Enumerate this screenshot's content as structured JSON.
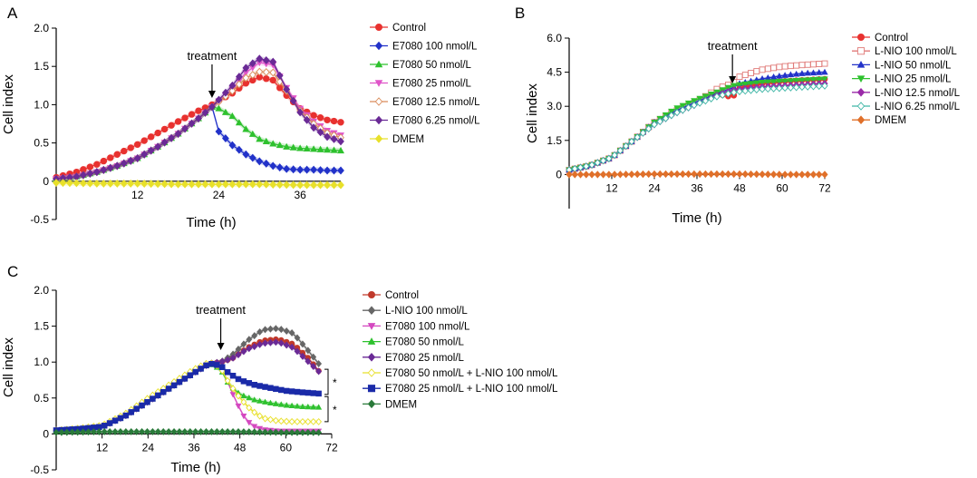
{
  "chart_data": [
    {
      "panel": "A",
      "type": "line",
      "xlabel": "Time (h)",
      "ylabel": "Cell index",
      "xlim": [
        0,
        42
      ],
      "ylim": [
        -0.5,
        2.0
      ],
      "xticks": [
        12,
        24,
        36
      ],
      "yticks": [
        -0.5,
        0,
        0.5,
        1.0,
        1.5,
        2.0
      ],
      "xtick_labels": [
        "12",
        "24",
        "36"
      ],
      "ytick_labels": [
        "-0.5",
        "0",
        "0.5",
        "1.0",
        "1.5",
        "2.0"
      ],
      "annotation": {
        "text": "treatment",
        "x": 23
      },
      "legend_position": "right",
      "series": [
        {
          "name": "Control",
          "color": "#e8312f",
          "marker": "circle",
          "x": [
            0,
            3,
            6,
            9,
            12,
            15,
            18,
            21,
            23,
            26,
            28,
            30,
            32,
            34,
            36,
            38,
            40,
            42
          ],
          "y": [
            0.05,
            0.12,
            0.22,
            0.35,
            0.48,
            0.63,
            0.78,
            0.92,
            1.0,
            1.15,
            1.28,
            1.36,
            1.32,
            1.12,
            0.95,
            0.86,
            0.8,
            0.77
          ]
        },
        {
          "name": "E7080 100 nmol/L",
          "color": "#2232c9",
          "marker": "diamond",
          "x": [
            0,
            3,
            6,
            9,
            12,
            15,
            18,
            21,
            23,
            24,
            26,
            28,
            30,
            32,
            34,
            36,
            38,
            40,
            42
          ],
          "y": [
            0.03,
            0.06,
            0.12,
            0.2,
            0.3,
            0.45,
            0.62,
            0.82,
            0.97,
            0.65,
            0.47,
            0.35,
            0.26,
            0.2,
            0.16,
            0.15,
            0.15,
            0.14,
            0.14
          ]
        },
        {
          "name": "E7080 50 nmol/L",
          "color": "#2ec12e",
          "marker": "triangle",
          "x": [
            0,
            3,
            6,
            9,
            12,
            15,
            18,
            21,
            23,
            24,
            26,
            28,
            30,
            32,
            34,
            36,
            38,
            40,
            42
          ],
          "y": [
            0.03,
            0.06,
            0.12,
            0.2,
            0.3,
            0.45,
            0.62,
            0.82,
            0.97,
            0.95,
            0.85,
            0.68,
            0.55,
            0.49,
            0.45,
            0.43,
            0.42,
            0.41,
            0.4
          ]
        },
        {
          "name": "E7080 25 nmol/L",
          "color": "#e055c9",
          "marker": "triangle-down",
          "x": [
            0,
            3,
            6,
            9,
            12,
            15,
            18,
            21,
            23,
            26,
            28,
            30,
            32,
            34,
            36,
            38,
            40,
            42
          ],
          "y": [
            0.03,
            0.06,
            0.12,
            0.2,
            0.3,
            0.45,
            0.62,
            0.82,
            0.97,
            1.2,
            1.42,
            1.55,
            1.52,
            1.22,
            0.95,
            0.78,
            0.66,
            0.6
          ]
        },
        {
          "name": "E7080 12.5 nmol/L",
          "color": "#d98b5a",
          "marker": "diamond-open",
          "x": [
            0,
            3,
            6,
            9,
            12,
            15,
            18,
            21,
            23,
            26,
            28,
            30,
            32,
            34,
            36,
            38,
            40,
            42
          ],
          "y": [
            0.03,
            0.06,
            0.12,
            0.2,
            0.3,
            0.45,
            0.62,
            0.82,
            0.97,
            1.18,
            1.35,
            1.43,
            1.42,
            1.18,
            0.92,
            0.75,
            0.63,
            0.57
          ]
        },
        {
          "name": "E7080 6.25 nmol/L",
          "color": "#6a2a96",
          "marker": "diamond",
          "x": [
            0,
            3,
            6,
            9,
            12,
            15,
            18,
            21,
            23,
            26,
            28,
            30,
            32,
            34,
            36,
            38,
            40,
            42
          ],
          "y": [
            0.03,
            0.06,
            0.12,
            0.2,
            0.3,
            0.45,
            0.62,
            0.82,
            0.97,
            1.25,
            1.48,
            1.6,
            1.56,
            1.2,
            0.9,
            0.7,
            0.58,
            0.52
          ]
        },
        {
          "name": "DMEM",
          "color": "#e8e02a",
          "marker": "diamond",
          "x": [
            0,
            6,
            12,
            18,
            24,
            30,
            36,
            42
          ],
          "y": [
            -0.02,
            -0.03,
            -0.03,
            -0.04,
            -0.04,
            -0.04,
            -0.05,
            -0.05
          ]
        }
      ]
    },
    {
      "panel": "B",
      "type": "line",
      "xlabel": "Time (h)",
      "ylabel": "Cell index",
      "xlim": [
        0,
        72
      ],
      "ylim": [
        -1.5,
        6.0
      ],
      "xticks": [
        12,
        24,
        36,
        48,
        60,
        72
      ],
      "yticks": [
        0,
        1.5,
        3.0,
        4.5,
        6.0
      ],
      "xtick_labels": [
        "12",
        "24",
        "36",
        "48",
        "60",
        "72"
      ],
      "ytick_labels": [
        "0",
        "1.5",
        "3.0",
        "4.5",
        "6.0"
      ],
      "annotation": {
        "text": "treatment",
        "x": 46
      },
      "legend_position": "right",
      "series": [
        {
          "name": "Control",
          "color": "#e8312f",
          "marker": "circle",
          "x": [
            0,
            6,
            12,
            18,
            24,
            30,
            36,
            42,
            46,
            48,
            54,
            60,
            66,
            72
          ],
          "y": [
            0.2,
            0.4,
            0.75,
            1.5,
            2.3,
            2.8,
            3.2,
            3.55,
            3.4,
            3.8,
            4.0,
            4.1,
            4.15,
            4.2
          ]
        },
        {
          "name": "L-NIO 100 nmol/L",
          "color": "#e07a78",
          "marker": "square-open",
          "x": [
            0,
            6,
            12,
            18,
            24,
            30,
            36,
            42,
            46,
            48,
            54,
            60,
            66,
            72
          ],
          "y": [
            0.2,
            0.4,
            0.75,
            1.5,
            2.3,
            2.8,
            3.2,
            3.8,
            4.0,
            4.3,
            4.6,
            4.75,
            4.82,
            4.88
          ]
        },
        {
          "name": "L-NIO 50 nmol/L",
          "color": "#2232c9",
          "marker": "triangle",
          "x": [
            0,
            6,
            12,
            18,
            24,
            30,
            36,
            42,
            46,
            48,
            54,
            60,
            66,
            72
          ],
          "y": [
            0.2,
            0.4,
            0.75,
            1.5,
            2.3,
            2.8,
            3.2,
            3.6,
            3.8,
            4.0,
            4.2,
            4.35,
            4.45,
            4.5
          ]
        },
        {
          "name": "L-NIO 25 nmol/L",
          "color": "#2ec12e",
          "marker": "triangle-down",
          "x": [
            0,
            6,
            12,
            18,
            24,
            30,
            36,
            42,
            46,
            48,
            54,
            60,
            66,
            72
          ],
          "y": [
            0.2,
            0.4,
            0.75,
            1.5,
            2.3,
            2.9,
            3.3,
            3.65,
            3.9,
            3.95,
            4.05,
            4.1,
            4.15,
            4.2
          ]
        },
        {
          "name": "L-NIO 12.5 nmol/L",
          "color": "#9a2aa8",
          "marker": "diamond",
          "x": [
            0,
            6,
            12,
            18,
            24,
            30,
            36,
            42,
            46,
            48,
            54,
            60,
            66,
            72
          ],
          "y": [
            0.2,
            0.4,
            0.75,
            1.5,
            2.2,
            2.7,
            3.1,
            3.5,
            3.7,
            3.75,
            3.85,
            3.9,
            3.95,
            4.0
          ]
        },
        {
          "name": "L-NIO 6.25 nmol/L",
          "color": "#3fb6a6",
          "marker": "diamond-open",
          "x": [
            0,
            6,
            12,
            18,
            24,
            30,
            36,
            42,
            46,
            48,
            54,
            60,
            66,
            72
          ],
          "y": [
            0.2,
            0.4,
            0.75,
            1.5,
            2.2,
            2.7,
            3.1,
            3.45,
            3.6,
            3.65,
            3.75,
            3.8,
            3.85,
            3.9
          ]
        },
        {
          "name": "DMEM",
          "color": "#e0702a",
          "marker": "diamond",
          "x": [
            0,
            12,
            24,
            36,
            48,
            60,
            72
          ],
          "y": [
            0.0,
            0.0,
            0.02,
            0.02,
            0.02,
            0.0,
            0.0
          ]
        }
      ]
    },
    {
      "panel": "C",
      "type": "line",
      "xlabel": "Time (h)",
      "ylabel": "Cell index",
      "xlim": [
        0,
        72
      ],
      "ylim": [
        -0.5,
        2.0
      ],
      "xticks": [
        12,
        24,
        36,
        48,
        60,
        72
      ],
      "yticks": [
        -0.5,
        0,
        0.5,
        1.0,
        1.5,
        2.0
      ],
      "xtick_labels": [
        "12",
        "24",
        "36",
        "48",
        "60",
        "72"
      ],
      "ytick_labels": [
        "-0.5",
        "0",
        "0.5",
        "1.0",
        "1.5",
        "2.0"
      ],
      "annotation": {
        "text": "treatment",
        "x": 43
      },
      "significance": [
        "*",
        "*"
      ],
      "legend_position": "right",
      "series": [
        {
          "name": "Control",
          "color": "#c0392b",
          "marker": "circle",
          "x": [
            0,
            6,
            12,
            18,
            24,
            30,
            36,
            40,
            43,
            46,
            50,
            54,
            58,
            62,
            66,
            69
          ],
          "y": [
            0.05,
            0.07,
            0.1,
            0.25,
            0.45,
            0.65,
            0.85,
            0.98,
            1.0,
            1.05,
            1.2,
            1.3,
            1.32,
            1.25,
            1.05,
            0.85
          ]
        },
        {
          "name": "L-NIO 100 nmol/L",
          "color": "#666666",
          "marker": "diamond",
          "x": [
            0,
            6,
            12,
            18,
            24,
            30,
            36,
            40,
            43,
            46,
            50,
            54,
            58,
            62,
            66,
            69
          ],
          "y": [
            0.05,
            0.07,
            0.1,
            0.25,
            0.45,
            0.65,
            0.85,
            0.98,
            1.0,
            1.1,
            1.3,
            1.45,
            1.47,
            1.4,
            1.15,
            0.95
          ]
        },
        {
          "name": "E7080 100 nmol/L",
          "color": "#d448c0",
          "marker": "triangle-down",
          "x": [
            0,
            6,
            12,
            18,
            24,
            30,
            36,
            40,
            43,
            45,
            47,
            49,
            51,
            54,
            58,
            62,
            66,
            69
          ],
          "y": [
            0.05,
            0.07,
            0.1,
            0.25,
            0.45,
            0.65,
            0.85,
            0.98,
            0.95,
            0.7,
            0.45,
            0.25,
            0.12,
            0.06,
            0.04,
            0.04,
            0.04,
            0.04
          ]
        },
        {
          "name": "E7080 50 nmol/L",
          "color": "#2ec12e",
          "marker": "triangle",
          "x": [
            0,
            6,
            12,
            18,
            24,
            30,
            36,
            40,
            43,
            45,
            48,
            52,
            56,
            60,
            64,
            69
          ],
          "y": [
            0.05,
            0.07,
            0.1,
            0.25,
            0.45,
            0.65,
            0.85,
            0.98,
            0.9,
            0.7,
            0.55,
            0.47,
            0.43,
            0.4,
            0.38,
            0.37
          ]
        },
        {
          "name": "E7080 25 nmol/L",
          "color": "#6a2a96",
          "marker": "diamond",
          "x": [
            0,
            6,
            12,
            18,
            24,
            30,
            36,
            40,
            43,
            46,
            50,
            54,
            58,
            62,
            66,
            69
          ],
          "y": [
            0.05,
            0.07,
            0.1,
            0.25,
            0.45,
            0.65,
            0.85,
            0.98,
            1.0,
            1.05,
            1.18,
            1.26,
            1.28,
            1.2,
            1.0,
            0.85
          ]
        },
        {
          "name": "E7080 50 nmol/L + L-NIO 100 nmol/L",
          "color": "#e8e02a",
          "marker": "diamond-open",
          "x": [
            0,
            6,
            12,
            18,
            24,
            30,
            36,
            40,
            43,
            45,
            48,
            51,
            54,
            58,
            62,
            66,
            69
          ],
          "y": [
            0.05,
            0.08,
            0.12,
            0.28,
            0.5,
            0.7,
            0.9,
            1.0,
            0.92,
            0.72,
            0.5,
            0.33,
            0.22,
            0.18,
            0.17,
            0.17,
            0.17
          ]
        },
        {
          "name": "E7080 25 nmol/L + L-NIO 100 nmol/L",
          "color": "#1a2aa8",
          "marker": "square",
          "x": [
            0,
            6,
            12,
            18,
            24,
            30,
            36,
            40,
            43,
            45,
            48,
            52,
            56,
            60,
            64,
            69
          ],
          "y": [
            0.05,
            0.07,
            0.1,
            0.25,
            0.45,
            0.65,
            0.85,
            0.98,
            0.95,
            0.85,
            0.75,
            0.68,
            0.64,
            0.6,
            0.58,
            0.56
          ]
        },
        {
          "name": "DMEM",
          "color": "#2a7a3a",
          "marker": "diamond",
          "x": [
            0,
            12,
            24,
            36,
            48,
            60,
            69
          ],
          "y": [
            0.02,
            0.03,
            0.03,
            0.03,
            0.03,
            0.02,
            0.02
          ]
        }
      ]
    }
  ]
}
